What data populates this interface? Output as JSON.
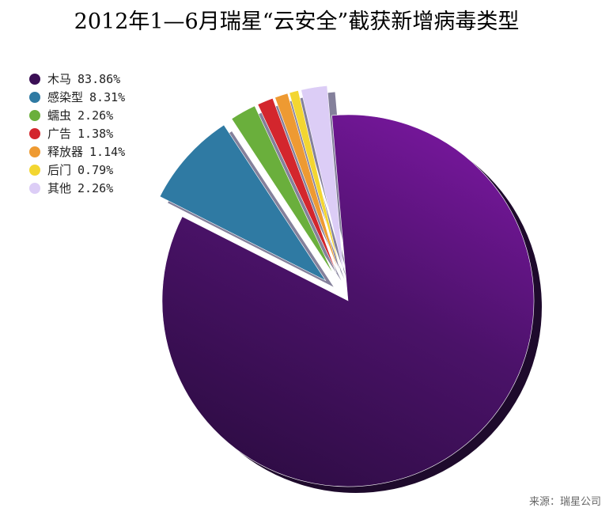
{
  "chart_data": {
    "type": "pie",
    "title": "2012年1—6月瑞星“云安全”截获新增病毒类型",
    "categories": [
      "木马",
      "感染型",
      "蠕虫",
      "广告",
      "释放器",
      "后门",
      "其他"
    ],
    "values": [
      83.86,
      8.31,
      2.26,
      1.38,
      1.14,
      0.79,
      2.26
    ],
    "value_labels": [
      "83.86%",
      "8.31%",
      "2.26%",
      "1.38%",
      "1.14%",
      "0.79%",
      "2.26%"
    ],
    "colors": [
      "#3b0f55",
      "#2f7aa3",
      "#6aaf3c",
      "#d3262d",
      "#ee9a32",
      "#f3d631",
      "#dccdf6"
    ],
    "legend": "top-left",
    "source": "来源：瑞星公司"
  }
}
